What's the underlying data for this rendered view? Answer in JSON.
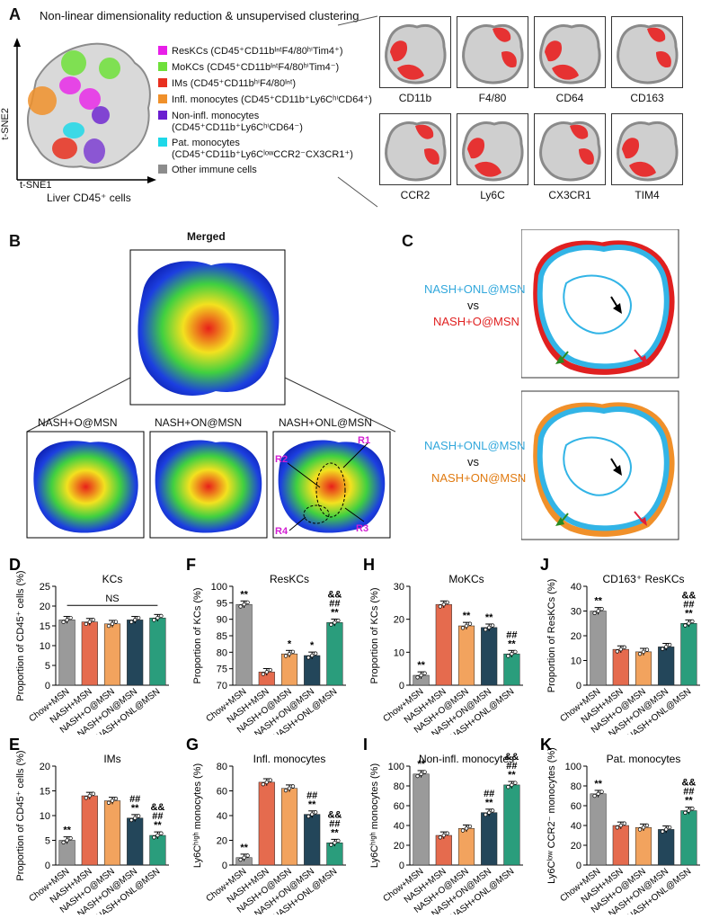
{
  "panelA": {
    "label": "A",
    "title": "Non-linear dimensionality reduction & unsupervised clustering",
    "axis_y": "t-SNE2",
    "axis_x": "t-SNE1",
    "xlabel": "Liver CD45⁺ cells",
    "legend": [
      {
        "name": "ResKCs (CD45⁺CD11bᴵⁿᵗF4/80ʰⁱTim4⁺)",
        "color": "#e81fe8"
      },
      {
        "name": "MoKCs (CD45⁺CD11bᴵⁿᵗF4/80ʰⁱTim4⁻)",
        "color": "#6fe03a"
      },
      {
        "name": "IMs (CD45⁺CD11bʰⁱF4/80ᴵⁿᵗ)",
        "color": "#e8301f"
      },
      {
        "name": "Infl. monocytes (CD45⁺CD11b⁺Ly6CʰⁱCD64⁺)",
        "color": "#f0902a"
      },
      {
        "name": "Non-infl. monocytes",
        "sub": "(CD45⁺CD11b⁺Ly6CʰⁱCD64⁻)",
        "color": "#6a1ed0"
      },
      {
        "name": "Pat. monocytes",
        "sub": "(CD45⁺CD11b⁺Ly6CˡᵒʷCCR2⁻CX3CR1⁺)",
        "color": "#1ed8e8"
      },
      {
        "name": "Other immune cells",
        "color": "#8c8c8c"
      }
    ],
    "markers_row1": [
      "CD11b",
      "F4/80",
      "CD64",
      "CD163"
    ],
    "markers_row2": [
      "CCR2",
      "Ly6C",
      "CX3CR1",
      "TIM4"
    ]
  },
  "panelB": {
    "label": "B",
    "merged": "Merged",
    "groups": [
      "NASH+O@MSN",
      "NASH+ON@MSN",
      "NASH+ONL@MSN"
    ],
    "regions": [
      "R1",
      "R2",
      "R3",
      "R4"
    ]
  },
  "panelC": {
    "label": "C",
    "top": {
      "a": "NASH+ONL@MSN",
      "vs": "vs",
      "b": "NASH+O@MSN"
    },
    "bottom": {
      "a": "NASH+ONL@MSN",
      "vs": "vs",
      "b": "NASH+ON@MSN"
    }
  },
  "chart_data": [
    {
      "id": "D",
      "type": "bar",
      "title": "KCs",
      "ylabel": "Proportion of CD45⁺ cells (%)",
      "ylim": [
        0,
        25
      ],
      "yticks": [
        0,
        5,
        10,
        15,
        20,
        25
      ],
      "categories": [
        "Chow+MSN",
        "NASH+MSN",
        "NASH+O@MSN",
        "NASH+ON@MSN",
        "NASH+ONL@MSN"
      ],
      "values": [
        16.5,
        16,
        15.5,
        16.5,
        17
      ],
      "sig": [
        [],
        [],
        [],
        [],
        []
      ],
      "ns": "NS"
    },
    {
      "id": "F",
      "type": "bar",
      "title": "ResKCs",
      "ylabel": "Proportion of KCs (%)",
      "ylim": [
        70,
        100
      ],
      "yticks": [
        70,
        75,
        80,
        85,
        90,
        95,
        100
      ],
      "categories": [
        "Chow+MSN",
        "NASH+MSN",
        "NASH+O@MSN",
        "NASH+ON@MSN",
        "NASH+ONL@MSN"
      ],
      "values": [
        94.5,
        74,
        79.5,
        79,
        89
      ],
      "sig": [
        [
          "**"
        ],
        [],
        [
          "*"
        ],
        [
          "*"
        ],
        [
          "&&",
          "##",
          "**"
        ]
      ]
    },
    {
      "id": "H",
      "type": "bar",
      "title": "MoKCs",
      "ylabel": "Proportion of KCs (%)",
      "ylim": [
        0,
        30
      ],
      "yticks": [
        0,
        10,
        20,
        30
      ],
      "categories": [
        "Chow+MSN",
        "NASH+MSN",
        "NASH+O@MSN",
        "NASH+ON@MSN",
        "NASH+ONL@MSN"
      ],
      "values": [
        3,
        24.5,
        18,
        17.5,
        9.5
      ],
      "sig": [
        [
          "**"
        ],
        [],
        [
          "**"
        ],
        [
          "**"
        ],
        [
          "##",
          "**"
        ]
      ]
    },
    {
      "id": "J",
      "type": "bar",
      "title": "CD163⁺ ResKCs",
      "ylabel": "Proportion of ResKCs (%)",
      "ylim": [
        0,
        40
      ],
      "yticks": [
        0,
        10,
        20,
        30,
        40
      ],
      "categories": [
        "Chow+MSN",
        "NASH+MSN",
        "NASH+O@MSN",
        "NASH+ON@MSN",
        "NASH+ONL@MSN"
      ],
      "values": [
        30,
        14.5,
        13.5,
        15.5,
        25
      ],
      "sig": [
        [
          "**"
        ],
        [],
        [],
        [],
        [
          "&&",
          "##",
          "**"
        ]
      ]
    },
    {
      "id": "E",
      "type": "bar",
      "title": "IMs",
      "ylabel": "Proportion of CD45⁺ cells (%)",
      "ylim": [
        0,
        20
      ],
      "yticks": [
        0,
        5,
        10,
        15,
        20
      ],
      "categories": [
        "Chow+MSN",
        "NASH+MSN",
        "NASH+O@MSN",
        "NASH+ON@MSN",
        "NASH+ONL@MSN"
      ],
      "values": [
        5,
        14,
        13,
        9.5,
        6
      ],
      "sig": [
        [
          "**"
        ],
        [],
        [],
        [
          "##",
          "**"
        ],
        [
          "&&",
          "##",
          "**"
        ]
      ]
    },
    {
      "id": "G",
      "type": "bar",
      "title": "Infl. monocytes",
      "ylabel": "Ly6Cʰⁱᵍʰ monocytes (%)",
      "ylim": [
        0,
        80
      ],
      "yticks": [
        0,
        20,
        40,
        60,
        80
      ],
      "categories": [
        "Chow+MSN",
        "NASH+MSN",
        "NASH+O@MSN",
        "NASH+ON@MSN",
        "NASH+ONL@MSN"
      ],
      "values": [
        6,
        67,
        62,
        41,
        18
      ],
      "sig": [
        [
          "**"
        ],
        [],
        [],
        [
          "##",
          "**"
        ],
        [
          "&&",
          "##",
          "**"
        ]
      ]
    },
    {
      "id": "I",
      "type": "bar",
      "title": "Non-infl. monocytes",
      "ylabel": "Ly6Cʰⁱᵍʰ monocytes (%)",
      "ylim": [
        0,
        100
      ],
      "yticks": [
        0,
        20,
        40,
        60,
        80,
        100
      ],
      "categories": [
        "Chow+MSN",
        "NASH+MSN",
        "NASH+O@MSN",
        "NASH+ON@MSN",
        "NASH+ONL@MSN"
      ],
      "values": [
        92,
        30,
        37,
        53,
        81
      ],
      "sig": [
        [
          "**"
        ],
        [],
        [],
        [
          "##",
          "**"
        ],
        [
          "&&",
          "##",
          "**"
        ]
      ]
    },
    {
      "id": "K",
      "type": "bar",
      "title": "Pat. monocytes",
      "ylabel": "Ly6Cˡᵒʷ CCR2⁻ monocytes (%)",
      "ylim": [
        0,
        100
      ],
      "yticks": [
        0,
        20,
        40,
        60,
        80,
        100
      ],
      "categories": [
        "Chow+MSN",
        "NASH+MSN",
        "NASH+O@MSN",
        "NASH+ON@MSN",
        "NASH+ONL@MSN"
      ],
      "values": [
        72,
        40,
        38,
        36,
        55
      ],
      "sig": [
        [
          "**"
        ],
        [],
        [],
        [],
        [
          "&&",
          "##",
          "**"
        ]
      ]
    }
  ],
  "colors": {
    "bars": [
      "#9a9a9a",
      "#e56b4e",
      "#f2a35e",
      "#23465a",
      "#2a9d7c"
    ]
  }
}
